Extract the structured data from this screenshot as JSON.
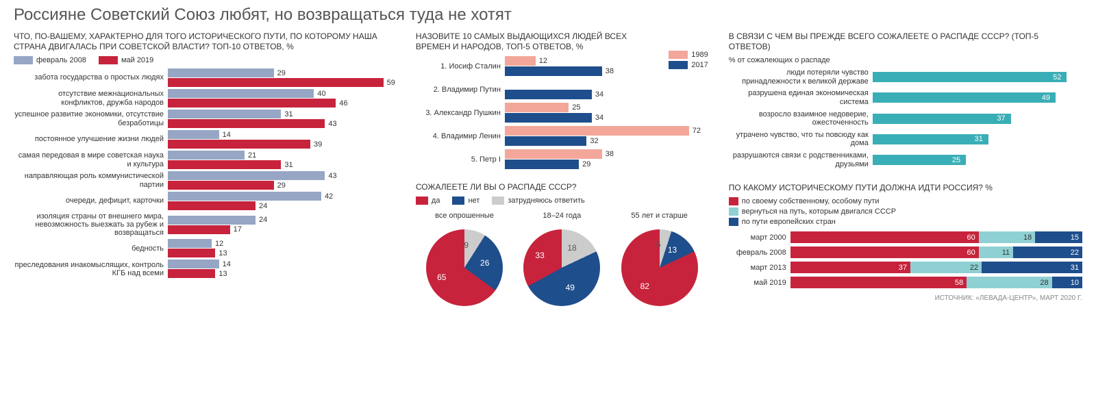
{
  "title": "Россияне Советский Союз любят, но возвращаться туда не хотят",
  "source": "ИСТОЧНИК: «ЛЕВАДА-ЦЕНТР», МАРТ 2020 Г.",
  "colors": {
    "blue_grey": "#96a6c4",
    "red": "#c8233c",
    "pink": "#f2a79a",
    "navy": "#1f4e8c",
    "teal": "#3aaeb6",
    "light_teal": "#8fd0d3",
    "grey": "#cccccc",
    "white": "#ffffff",
    "text": "#333333"
  },
  "chart1": {
    "title": "ЧТО, ПО-ВАШЕМУ, ХАРАКТЕРНО ДЛЯ ТОГО ИСТОРИЧЕСКОГО ПУТИ, ПО КОТОРОМУ НАША СТРАНА ДВИГАЛАСЬ ПРИ СОВЕТСКОЙ ВЛАСТИ? ТОП-10 ОТВЕТОВ, %",
    "legend": [
      {
        "label": "февраль 2008",
        "color": "#96a6c4"
      },
      {
        "label": "май 2019",
        "color": "#c8233c"
      }
    ],
    "max": 60,
    "items": [
      {
        "label": "забота государства о простых людях",
        "a": 29,
        "b": 59
      },
      {
        "label": "отсутствие межнациональных конфликтов, дружба народов",
        "a": 40,
        "b": 46
      },
      {
        "label": "успешное развитие экономики, отсутствие безработицы",
        "a": 31,
        "b": 43
      },
      {
        "label": "постоянное улучшение жизни людей",
        "a": 14,
        "b": 39
      },
      {
        "label": "самая передовая в мире советская наука и культура",
        "a": 21,
        "b": 31
      },
      {
        "label": "направляющая роль коммунистической партии",
        "a": 43,
        "b": 29
      },
      {
        "label": "очереди, дефицит, карточки",
        "a": 42,
        "b": 24
      },
      {
        "label": "изоляция страны от внешнего мира, невозможность выезжать за рубеж и возвращаться",
        "a": 24,
        "b": 17
      },
      {
        "label": "бедность",
        "a": 12,
        "b": 13
      },
      {
        "label": "преследования инакомыслящих, контроль КГБ над всеми",
        "a": 14,
        "b": 13
      }
    ]
  },
  "chart2": {
    "title": "НАЗОВИТЕ 10 САМЫХ ВЫДАЮЩИХСЯ ЛЮДЕЙ ВСЕХ ВРЕМЕН И НАРОДОВ, ТОП-5 ОТВЕТОВ, %",
    "legend": [
      {
        "label": "1989",
        "color": "#f2a79a"
      },
      {
        "label": "2017",
        "color": "#1f4e8c"
      }
    ],
    "max": 75,
    "items": [
      {
        "label": "1. Иосиф Сталин",
        "a": 12,
        "b": 38
      },
      {
        "label": "2. Владимир Путин",
        "a": null,
        "b": 34
      },
      {
        "label": "3. Александр Пушкин",
        "a": 25,
        "b": 34
      },
      {
        "label": "4. Владимир Ленин",
        "a": 72,
        "b": 32
      },
      {
        "label": "5. Петр I",
        "a": 38,
        "b": 29
      }
    ]
  },
  "chart_pies": {
    "title": "СОЖАЛЕЕТЕ ЛИ ВЫ О РАСПАДЕ СССР?",
    "legend": [
      {
        "label": "да",
        "color": "#c8233c"
      },
      {
        "label": "нет",
        "color": "#1f4e8c"
      },
      {
        "label": "затрудняюсь ответить",
        "color": "#cccccc"
      }
    ],
    "pies": [
      {
        "caption": "все опрошенные",
        "yes": 65,
        "no": 26,
        "dk": 9,
        "size": 112
      },
      {
        "caption": "18–24 года",
        "yes": 33,
        "no": 49,
        "dk": 18,
        "size": 112
      },
      {
        "caption": "55 лет и старше",
        "yes": 82,
        "no": 13,
        "dk": 5,
        "size": 112
      }
    ]
  },
  "chart3": {
    "title": "В СВЯЗИ С ЧЕМ ВЫ ПРЕЖДЕ ВСЕГО СОЖАЛЕЕТЕ О РАСПАДЕ СССР? (ТОП-5 ОТВЕТОВ)",
    "subtitle": "% от сожалеющих о распаде",
    "color": "#3aaeb6",
    "max": 55,
    "items": [
      {
        "label": "люди потеряли чувство принадлежности к великой державе",
        "v": 52
      },
      {
        "label": "разрушена единая экономическая система",
        "v": 49
      },
      {
        "label": "возросло взаимное недоверие, ожесточенность",
        "v": 37
      },
      {
        "label": "утрачено чувство, что ты повсюду как дома",
        "v": 31
      },
      {
        "label": "разрушаются связи с родственниками, друзьями",
        "v": 25
      }
    ]
  },
  "chart4": {
    "title": "ПО КАКОМУ ИСТОРИЧЕСКОМУ ПУТИ ДОЛЖНА ИДТИ РОССИЯ? %",
    "legend": [
      {
        "label": "по своему собственному, особому пути",
        "color": "#c8233c"
      },
      {
        "label": "вернуться на путь, которым двигался СССР",
        "color": "#8fd0d3"
      },
      {
        "label": "по пути европейских стран",
        "color": "#1f4e8c"
      }
    ],
    "items": [
      {
        "label": "март 2000",
        "segs": [
          60,
          18,
          15
        ]
      },
      {
        "label": "февраль 2008",
        "segs": [
          60,
          11,
          22
        ]
      },
      {
        "label": "март 2013",
        "segs": [
          37,
          22,
          31
        ]
      },
      {
        "label": "май 2019",
        "segs": [
          58,
          28,
          10
        ]
      }
    ]
  }
}
